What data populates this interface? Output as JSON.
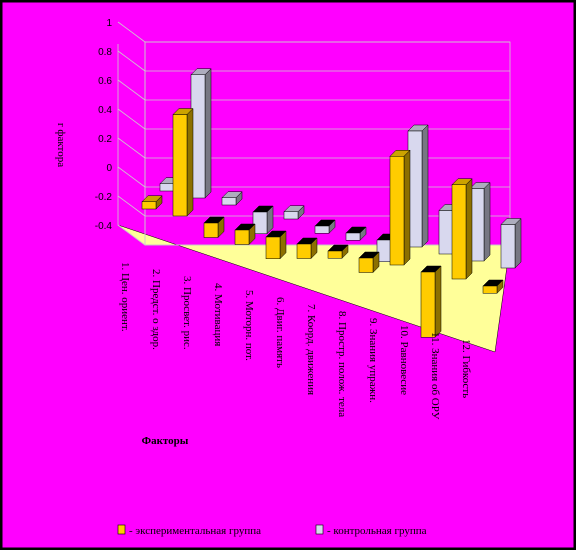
{
  "chart_data": {
    "type": "bar3d",
    "y_label": "r фактора",
    "x_label": "Факторы",
    "categories": [
      "1. Цен. ориент.",
      "2. Предст. о здор.",
      "3. Просвет. рис.",
      "4. Мотивация",
      "5. Моторн. пот.",
      "6. Двиг. память",
      "7. Коорд. движения",
      "8. Простр. полож. тела",
      "9. Знания упражн.",
      "10. Равновесие",
      "11. Знания об ОРУ",
      "12. Гибкость"
    ],
    "series": [
      {
        "name": "- экспериментальная группа",
        "color": "#ffcc00",
        "values": [
          0.05,
          0.7,
          -0.1,
          -0.1,
          -0.15,
          -0.1,
          -0.05,
          -0.1,
          0.75,
          -0.45,
          0.65,
          -0.05
        ]
      },
      {
        "name": "- контрольная группа",
        "color": "#d8d8ee",
        "values": [
          0.05,
          0.85,
          0.05,
          -0.15,
          0.05,
          -0.05,
          -0.05,
          -0.15,
          0.8,
          0.3,
          0.5,
          0.3
        ]
      }
    ],
    "ylim": [
      -0.4,
      1
    ],
    "yticks": [
      -0.4,
      -0.2,
      0,
      0.2,
      0.4,
      0.6,
      0.8,
      1
    ],
    "grid": true,
    "background": "#ff00ff",
    "floor_color": "#ffff99"
  }
}
